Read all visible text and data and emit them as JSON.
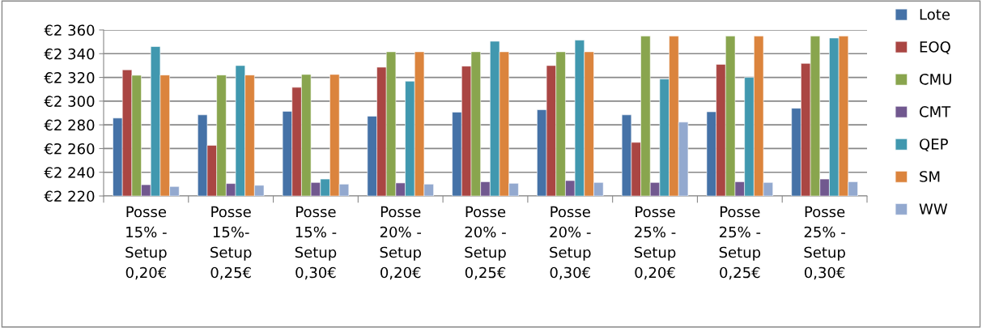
{
  "chart_data": {
    "type": "bar",
    "categories": [
      "Posse\n15% -\nSetup\n0,20€",
      "Posse\n15%-\nSetup\n0,25€",
      "Posse\n15% -\nSetup\n0,30€",
      "Posse\n20% -\nSetup\n0,20€",
      "Posse\n20% -\nSetup\n0,25€",
      "Posse\n20% -\nSetup\n0,30€",
      "Posse\n25% -\nSetup\n0,20€",
      "Posse\n25% -\nSetup\n0,25€",
      "Posse\n25% -\nSetup\n0,30€"
    ],
    "series": [
      {
        "name": "Lote",
        "color": "#4572a7",
        "values": [
          2285.7,
          2288.4,
          2291.4,
          2287.3,
          2290.7,
          2292.7,
          2288.4,
          2291,
          2294
        ]
      },
      {
        "name": "EOQ",
        "color": "#aa4643",
        "values": [
          2326.4,
          2262.7,
          2311.6,
          2328.6,
          2329.5,
          2330,
          2265.2,
          2331,
          2331.8
        ]
      },
      {
        "name": "CMU",
        "color": "#89a54e",
        "values": [
          2321.8,
          2322,
          2322.5,
          2341.6,
          2341.6,
          2341.6,
          2354.8,
          2354.8,
          2354.8
        ]
      },
      {
        "name": "CMT",
        "color": "#71588f",
        "values": [
          2229.5,
          2230.5,
          2231.4,
          2231,
          2232,
          2233,
          2231.4,
          2232,
          2234.3
        ]
      },
      {
        "name": "QEP",
        "color": "#4198af",
        "values": [
          2346,
          2330,
          2234.3,
          2316.8,
          2350.5,
          2351.4,
          2318.6,
          2320,
          2353.2
        ]
      },
      {
        "name": "SM",
        "color": "#db843d",
        "values": [
          2322,
          2322,
          2322.5,
          2341.6,
          2341.6,
          2341.6,
          2354.8,
          2354.8,
          2354.8
        ]
      },
      {
        "name": "WW",
        "color": "#93a9cf",
        "values": [
          2228,
          2229,
          2230,
          2230,
          2230.7,
          2231.4,
          2282.3,
          2231.4,
          2232
        ]
      }
    ],
    "ylim": [
      2220,
      2360
    ],
    "yticks": [
      {
        "value": 2220,
        "label": "€2 220"
      },
      {
        "value": 2240,
        "label": "€2 240"
      },
      {
        "value": 2260,
        "label": "€2 260"
      },
      {
        "value": 2280,
        "label": "€2 280"
      },
      {
        "value": 2300,
        "label": "€2 300"
      },
      {
        "value": 2320,
        "label": "€2 320"
      },
      {
        "value": 2340,
        "label": "€2 340"
      },
      {
        "value": 2360,
        "label": "€2 360"
      }
    ],
    "grid": "y",
    "legend": "right"
  }
}
